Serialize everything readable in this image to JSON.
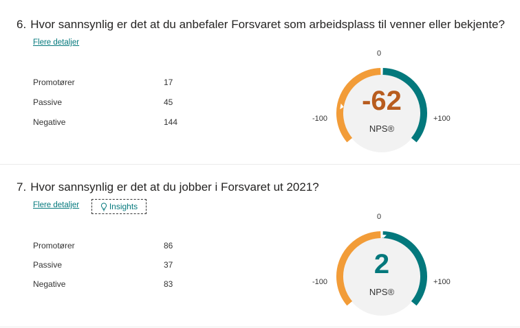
{
  "questions": [
    {
      "number": "6.",
      "title": "Hvor sannsynlig er det at du anbefaler Forsvaret som arbeidsplass til venner eller bekjente?",
      "details_link": "Flere detaljer",
      "stats": [
        {
          "label": "Promotører",
          "value": "17"
        },
        {
          "label": "Passive",
          "value": "45"
        },
        {
          "label": "Negative",
          "value": "144"
        }
      ],
      "nps": {
        "score": "-62",
        "score_value": -62,
        "label": "NPS®",
        "min_label": "-100",
        "zero_label": "0",
        "max_label": "+100",
        "score_color": "#b85c1e"
      }
    },
    {
      "number": "7.",
      "title": "Hvor sannsynlig er det at du jobber i Forsvaret ut 2021?",
      "details_link": "Flere detaljer",
      "insights_label": "Insights",
      "stats": [
        {
          "label": "Promotører",
          "value": "86"
        },
        {
          "label": "Passive",
          "value": "37"
        },
        {
          "label": "Negative",
          "value": "83"
        }
      ],
      "nps": {
        "score": "2",
        "score_value": 2,
        "label": "NPS®",
        "min_label": "-100",
        "zero_label": "0",
        "max_label": "+100",
        "score_color": "#03787c"
      }
    }
  ],
  "colors": {
    "negative_arc": "#f29c38",
    "positive_arc": "#03787c",
    "gauge_bg": "#f2f2f2",
    "link": "#03787c"
  }
}
